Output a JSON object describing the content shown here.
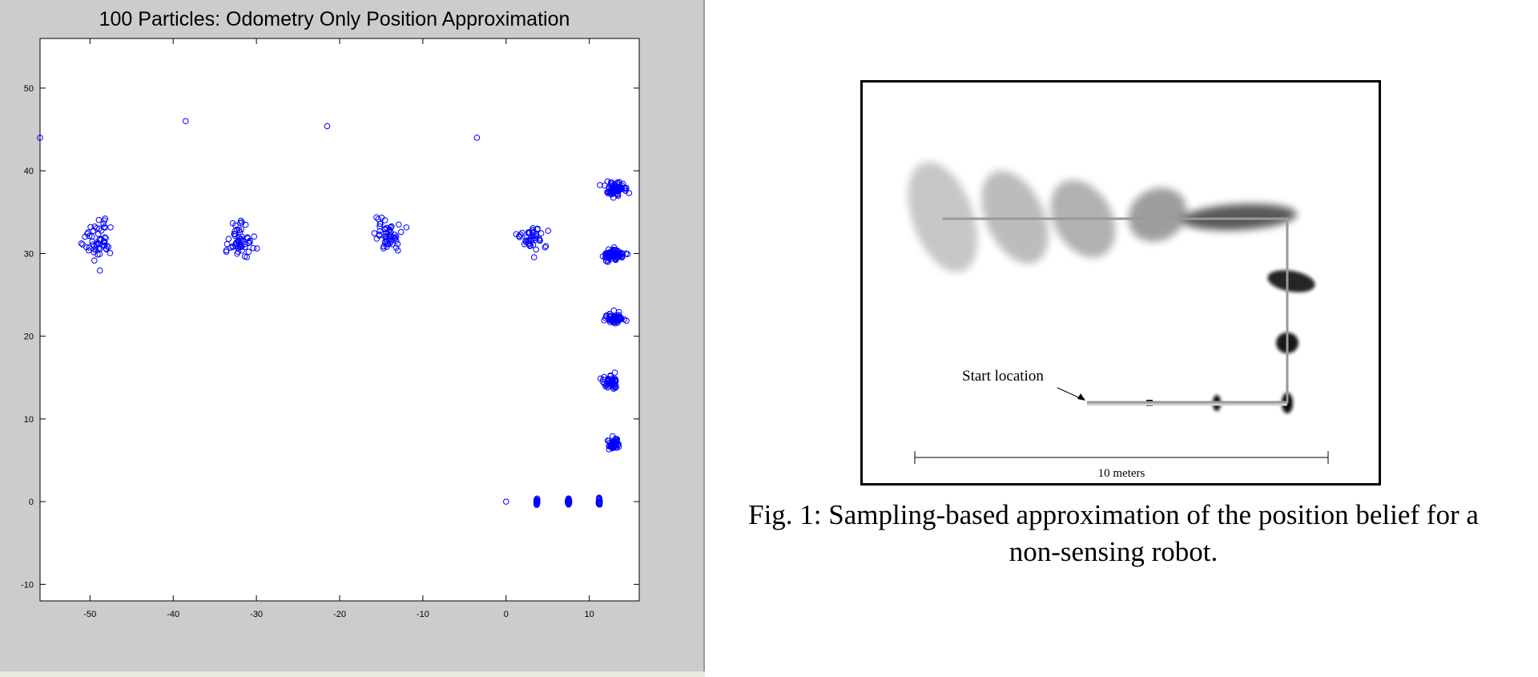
{
  "plot": {
    "title": "100 Particles: Odometry Only Position Approximation",
    "marker_color": "#0000ff"
  },
  "chart_data": {
    "type": "scatter",
    "title": "100 Particles: Odometry Only Position Approximation",
    "xlabel": "",
    "ylabel": "",
    "xlim": [
      -56,
      16
    ],
    "ylim": [
      -12,
      56
    ],
    "xticks": [
      -50,
      -40,
      -30,
      -20,
      -10,
      0,
      10
    ],
    "yticks": [
      -10,
      0,
      10,
      20,
      30,
      40,
      50
    ],
    "grid": false,
    "clusters": [
      {
        "center": [
          -49,
          31.5
        ],
        "spread": [
          2.0,
          3.0
        ],
        "count": 55
      },
      {
        "center": [
          -32,
          31.5
        ],
        "spread": [
          2.0,
          2.5
        ],
        "count": 55
      },
      {
        "center": [
          -14,
          32.0
        ],
        "spread": [
          2.0,
          2.5
        ],
        "count": 55
      },
      {
        "center": [
          3,
          32.0
        ],
        "spread": [
          2.0,
          1.8
        ],
        "count": 45
      },
      {
        "center": [
          13,
          37.8
        ],
        "spread": [
          1.5,
          0.9
        ],
        "count": 75
      },
      {
        "center": [
          13,
          29.8
        ],
        "spread": [
          1.5,
          0.8
        ],
        "count": 75
      },
      {
        "center": [
          13,
          22.2
        ],
        "spread": [
          1.3,
          0.8
        ],
        "count": 60
      },
      {
        "center": [
          12.5,
          14.5
        ],
        "spread": [
          1.1,
          0.8
        ],
        "count": 50
      },
      {
        "center": [
          13,
          7.0
        ],
        "spread": [
          0.8,
          0.8
        ],
        "count": 50
      },
      {
        "center": [
          3.7,
          0
        ],
        "spread": [
          0.1,
          0.4
        ],
        "count": 30
      },
      {
        "center": [
          7.5,
          0
        ],
        "spread": [
          0.1,
          0.4
        ],
        "count": 30
      },
      {
        "center": [
          11.2,
          0
        ],
        "spread": [
          0.1,
          0.5
        ],
        "count": 30
      }
    ],
    "outliers": [
      [
        -56,
        44
      ],
      [
        -38.5,
        46
      ],
      [
        -21.5,
        45.4
      ],
      [
        -3.5,
        44
      ],
      [
        0,
        0
      ]
    ]
  },
  "figure": {
    "start_label": "Start location",
    "scale_label": "10 meters",
    "caption": "Fig. 1: Sampling-based approximation of the position belief for a non-sensing robot."
  }
}
